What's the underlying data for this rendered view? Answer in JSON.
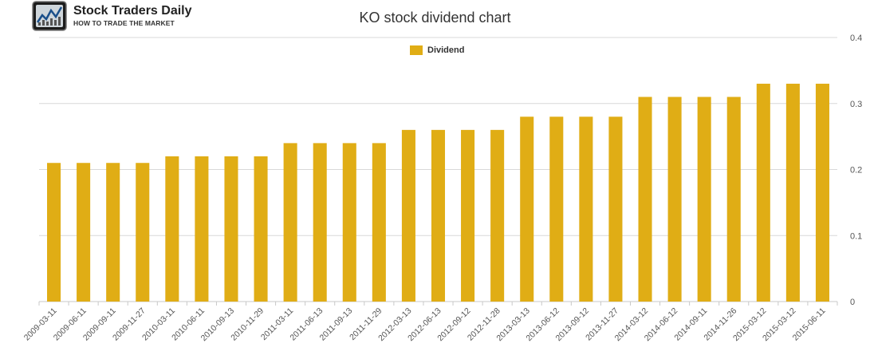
{
  "brand": {
    "name": "Stock Traders Daily",
    "tagline": "HOW TO TRADE THE MARKET"
  },
  "colors": {
    "bar": "#e0ad15",
    "grid": "#d8d8d8",
    "axis_text": "#555555"
  },
  "chart_data": {
    "type": "bar",
    "title": "KO stock dividend chart",
    "xlabel": "",
    "ylabel": "",
    "ylim": [
      0,
      0.4
    ],
    "yticks": [
      "0",
      "0.1",
      "0.2",
      "0.3",
      "0.4"
    ],
    "y_axis_side": "right",
    "grid": true,
    "legend_position": "top-center",
    "categories": [
      "2009-03-11",
      "2009-06-11",
      "2009-09-11",
      "2009-11-27",
      "2010-03-11",
      "2010-06-11",
      "2010-09-13",
      "2010-11-29",
      "2011-03-11",
      "2011-06-13",
      "2011-09-13",
      "2011-11-29",
      "2012-03-13",
      "2012-06-13",
      "2012-09-12",
      "2012-11-28",
      "2013-03-13",
      "2013-06-12",
      "2013-09-12",
      "2013-11-27",
      "2014-03-12",
      "2014-06-12",
      "2014-09-11",
      "2014-11-26",
      "2015-03-12",
      "2015-03-12",
      "2015-06-11"
    ],
    "series": [
      {
        "name": "Dividend",
        "values": [
          0.21,
          0.21,
          0.21,
          0.21,
          0.22,
          0.22,
          0.22,
          0.22,
          0.24,
          0.24,
          0.24,
          0.24,
          0.26,
          0.26,
          0.26,
          0.26,
          0.28,
          0.28,
          0.28,
          0.28,
          0.31,
          0.31,
          0.31,
          0.31,
          0.33,
          0.33,
          0.33
        ]
      }
    ]
  }
}
